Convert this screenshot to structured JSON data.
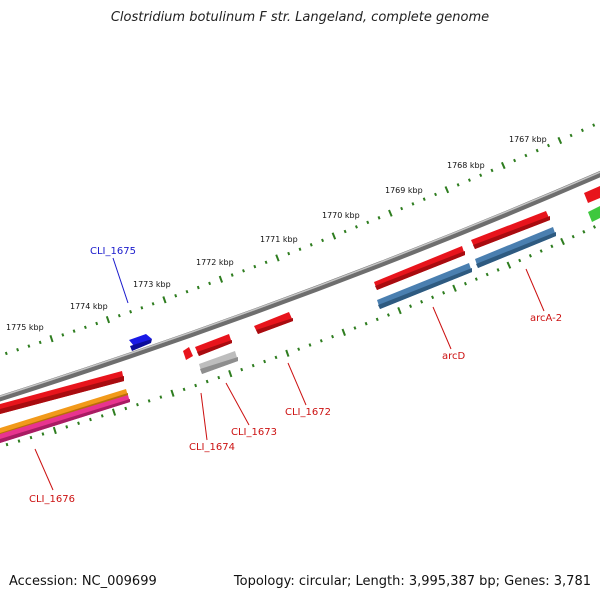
{
  "title": "Clostridium botulinum F str. Langeland, complete genome",
  "footer": {
    "accession": "Accession: NC_009699",
    "stats": "Topology: circular; Length: 3,995,387 bp; Genes: 3,781"
  },
  "ticks": [
    "1767 kbp",
    "1768 kbp",
    "1769 kbp",
    "1770 kbp",
    "1771 kbp",
    "1772 kbp",
    "1773 kbp",
    "1774 kbp",
    "1775 kbp"
  ],
  "gene_labels": {
    "cli1675": "CLI_1675",
    "cli1676": "CLI_1676",
    "cli1674": "CLI_1674",
    "cli1673": "CLI_1673",
    "cli1672": "CLI_1672",
    "arcD": "arcD",
    "arcA2": "arcA-2"
  },
  "colors": {
    "backbone": "#808080",
    "tick": "#2e7d1f",
    "cds_red": "#e8141c",
    "blue_feature": "#1a1ae6",
    "steelblue_feature": "#4a7fb0",
    "grey_feature": "#bdbdbd",
    "orange_feature": "#f29a1a",
    "magenta_feature": "#e8348f",
    "green_feature": "#3ec83e",
    "label_blue": "#1a1acc",
    "label_red": "#cc1111"
  }
}
